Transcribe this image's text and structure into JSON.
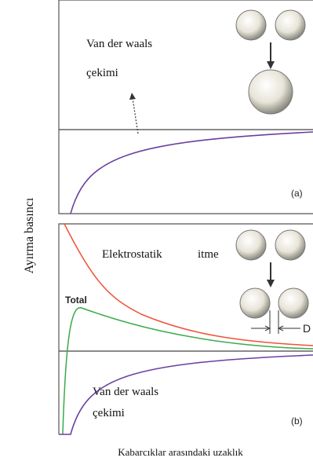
{
  "y_axis_label": "Ayırma basıncı",
  "x_axis_label": "Kabarcıklar arasındaki uzaklık",
  "panel_a": {
    "label": "(a)",
    "attraction_line1": "Van der waals",
    "attraction_line2": "çekimi"
  },
  "panel_b": {
    "label": "(b)",
    "repulsion_word1": "Elektrostatik",
    "repulsion_word2": "itme",
    "total": "Total",
    "distance": "D",
    "attraction_line1": "Van der waals",
    "attraction_line2": "çekimi"
  }
}
